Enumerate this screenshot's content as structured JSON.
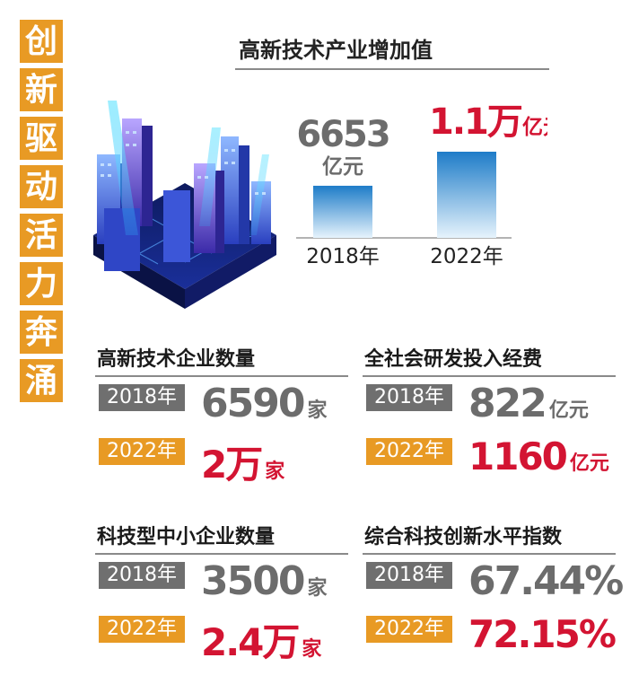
{
  "vertical_title": [
    "创",
    "新",
    "驱",
    "动",
    "活",
    "力",
    "奔",
    "涌"
  ],
  "chart_data": {
    "type": "bar",
    "title": "高新技术产业增加值",
    "categories": [
      "2018年",
      "2022年"
    ],
    "values": [
      6653,
      11000
    ],
    "value_labels": [
      {
        "number": "6653",
        "unit": "亿元"
      },
      {
        "number": "1.1万",
        "unit": "亿元"
      }
    ],
    "colors": {
      "old_label": "#6c6c6c",
      "new_label": "#D31432",
      "bar_top": "#1E7CC8",
      "bar_bottom": "#E6F3FC"
    }
  },
  "sections": [
    {
      "title": "高新技术企业数量",
      "old": {
        "year": "2018年",
        "value": "6590",
        "unit": "家"
      },
      "new": {
        "year": "2022年",
        "value": "2万",
        "unit": "家"
      }
    },
    {
      "title": "全社会研发投入经费",
      "old": {
        "year": "2018年",
        "value": "822",
        "unit": "亿元"
      },
      "new": {
        "year": "2022年",
        "value": "1160",
        "unit": "亿元"
      }
    },
    {
      "title": "科技型中小企业数量",
      "old": {
        "year": "2018年",
        "value": "3500",
        "unit": "家"
      },
      "new": {
        "year": "2022年",
        "value": "2.4万",
        "unit": "家"
      }
    },
    {
      "title": "综合科技创新水平指数",
      "old": {
        "year": "2018年",
        "value": "67.44%",
        "unit": ""
      },
      "new": {
        "year": "2022年",
        "value": "72.15%",
        "unit": ""
      }
    }
  ],
  "theme": {
    "orange": "#E89A24",
    "gray_tag": "#6f6f6f",
    "red": "#D31432"
  }
}
